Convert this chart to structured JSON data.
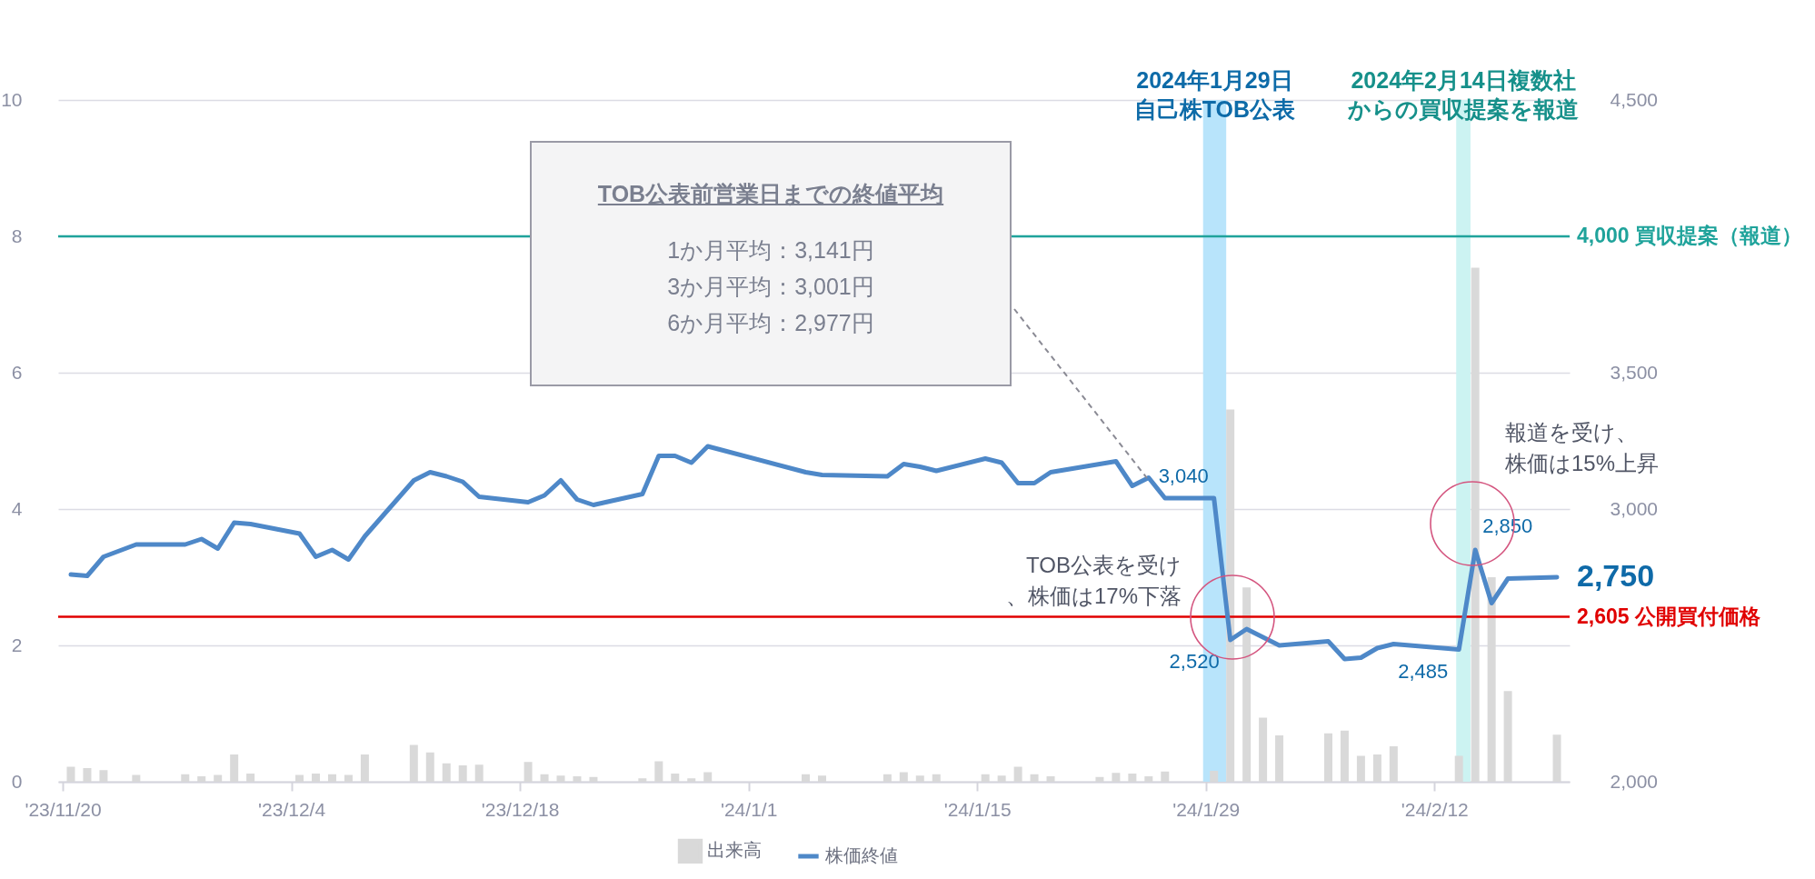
{
  "chart_data": {
    "type": "bar",
    "x": [
      "2023-11-20T12:00",
      "2023-11-21T12:00",
      "2023-11-22T12:00",
      "2023-11-24T12:00",
      "2023-11-27T12:00",
      "2023-11-28T12:00",
      "2023-11-29T12:00",
      "2023-11-30T12:00",
      "2023-12-01T12:00",
      "2023-12-04T12:00",
      "2023-12-05T12:00",
      "2023-12-06T12:00",
      "2023-12-07T12:00",
      "2023-12-08T12:00",
      "2023-12-11T12:00",
      "2023-12-12T12:00",
      "2023-12-13T12:00",
      "2023-12-14T12:00",
      "2023-12-15T12:00",
      "2023-12-18T12:00",
      "2023-12-19T12:00",
      "2023-12-20T12:00",
      "2023-12-21T12:00",
      "2023-12-22T12:00",
      "2023-12-25T12:00",
      "2023-12-26T12:00",
      "2023-12-27T12:00",
      "2023-12-28T12:00",
      "2023-12-29T12:00",
      "2024-01-04T12:00",
      "2024-01-05T12:00",
      "2024-01-09T12:00",
      "2024-01-10T12:00",
      "2024-01-11T12:00",
      "2024-01-12T12:00",
      "2024-01-15T12:00",
      "2024-01-16T12:00",
      "2024-01-17T12:00",
      "2024-01-18T12:00",
      "2024-01-19T12:00",
      "2024-01-22T12:00",
      "2024-01-23T12:00",
      "2024-01-24T12:00",
      "2024-01-25T12:00",
      "2024-01-26T12:00",
      "2024-01-29T12:00",
      "2024-01-30T12:00",
      "2024-01-31T12:00",
      "2024-02-01T12:00",
      "2024-02-02T12:00",
      "2024-02-05T12:00",
      "2024-02-06T12:00",
      "2024-02-07T12:00",
      "2024-02-08T12:00",
      "2024-02-09T12:00",
      "2024-02-13T12:00",
      "2024-02-14T12:00",
      "2024-02-15T12:00",
      "2024-02-16T12:00",
      "2024-02-19T12:00"
    ],
    "series": [
      {
        "name": "出来高",
        "axis": "y",
        "color": "#d9d9d9",
        "values": [
          0.22,
          0.2,
          0.17,
          0.1,
          0.11,
          0.08,
          0.1,
          0.4,
          0.12,
          0.1,
          0.12,
          0.11,
          0.1,
          0.4,
          0.54,
          0.43,
          0.27,
          0.24,
          0.25,
          0.29,
          0.11,
          0.09,
          0.08,
          0.07,
          0.05,
          0.3,
          0.12,
          0.05,
          0.14,
          0.11,
          0.09,
          0.11,
          0.14,
          0.09,
          0.11,
          0.11,
          0.09,
          0.22,
          0.11,
          0.08,
          0.07,
          0.13,
          0.12,
          0.08,
          0.15,
          0.16,
          5.46,
          2.85,
          0.94,
          0.68,
          0.71,
          0.75,
          0.38,
          0.4,
          0.52,
          0.38,
          7.54,
          3.0,
          1.33,
          0.69
        ]
      },
      {
        "name": "株価終値",
        "type": "line",
        "axis": "y2",
        "color": "#4e88c8",
        "values": [
          2760,
          2755,
          2825,
          2870,
          2870,
          2890,
          2855,
          2950,
          2945,
          2910,
          2825,
          2850,
          2815,
          2900,
          3105,
          3135,
          3120,
          3100,
          3045,
          3025,
          3050,
          3105,
          3035,
          3015,
          3055,
          3195,
          3195,
          3170,
          3230,
          3135,
          3125,
          3120,
          3165,
          3155,
          3140,
          3185,
          3170,
          3095,
          3095,
          3135,
          3165,
          3175,
          3085,
          3115,
          3040,
          3040,
          2520,
          2560,
          2530,
          2500,
          2515,
          2450,
          2455,
          2490,
          2505,
          2485,
          2850,
          2655,
          2745,
          2750
        ],
        "value_labels": [
          null,
          null,
          null,
          null,
          null,
          null,
          null,
          null,
          null,
          null,
          null,
          null,
          null,
          null,
          null,
          null,
          null,
          null,
          null,
          null,
          null,
          null,
          null,
          null,
          null,
          null,
          null,
          null,
          null,
          null,
          null,
          null,
          null,
          null,
          null,
          null,
          null,
          null,
          null,
          null,
          null,
          null,
          null,
          null,
          null,
          "3,040",
          "2,520",
          null,
          null,
          null,
          null,
          null,
          null,
          null,
          null,
          "2,485",
          "2,850",
          null,
          null,
          "2,750"
        ]
      }
    ],
    "xlim": [
      "2023-11-20T00:00",
      "2024-02-20T00:00"
    ],
    "xticks": [
      {
        "value": "2023-11-20T00:00",
        "label": "'23/11/20"
      },
      {
        "value": "2023-12-04T00:00",
        "label": "'23/12/4"
      },
      {
        "value": "2023-12-18T00:00",
        "label": "'23/12/18"
      },
      {
        "value": "2024-01-01T00:00",
        "label": "'24/1/1"
      },
      {
        "value": "2024-01-15T00:00",
        "label": "'24/1/15"
      },
      {
        "value": "2024-01-29T00:00",
        "label": "'24/1/29"
      },
      {
        "value": "2024-02-12T00:00",
        "label": "'24/2/12"
      }
    ],
    "ylim": [
      0,
      10
    ],
    "yticks": [
      0,
      2,
      4,
      6,
      8,
      10
    ],
    "y2lim": [
      2000,
      4500
    ],
    "y2ticks": [
      {
        "value": 2000,
        "label": "2,000"
      },
      {
        "value": 2500,
        "label": null
      },
      {
        "value": 3000,
        "label": "3,000"
      },
      {
        "value": 3500,
        "label": "3,500"
      },
      {
        "value": 4000,
        "label": null
      },
      {
        "value": 4500,
        "label": "4,500"
      }
    ],
    "grid": "y",
    "legend": "bottom",
    "ref_lines": [
      {
        "axis": "y2",
        "value": 4000,
        "label": "4,000 買収提案（報道）",
        "color": "#1fa39b"
      },
      {
        "axis": "y2",
        "value": 2605,
        "label": "2,605 公開買付価格",
        "color": "#e00000"
      }
    ],
    "bands": [
      {
        "axis": "x",
        "from": "2024-01-28T20:00",
        "to": "2024-01-30T06:00",
        "label": "2024年1月29日自己株TOB公表",
        "color": "#b8e4fb"
      },
      {
        "axis": "x",
        "from": "2024-02-13T08:00",
        "to": "2024-02-14T05:00",
        "label": "2024年2月14日複数社からの買収提案を報道",
        "color": "#ccf3f2"
      }
    ],
    "annotations": [
      "TOB公表前営業日までの終値平均",
      "1か月平均：3,141円",
      "3か月平均：3,001円",
      "6か月平均：2,977円",
      "TOB公表を受け、株価は17%下落",
      "報道を受け、株価は15%上昇"
    ]
  }
}
